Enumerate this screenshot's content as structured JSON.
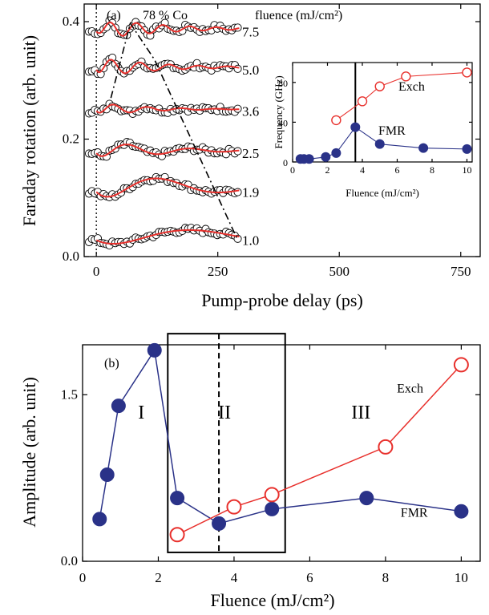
{
  "chart_data": [
    {
      "id": "a",
      "type": "scatter",
      "panel_label": "(a)",
      "sample_label": "78 % Co",
      "legend_title": "fluence (mJ/cm²)",
      "xlabel": "Pump-probe delay (ps)",
      "ylabel": "Faraday rotation (arb. unit)",
      "xlim": [
        -25,
        790
      ],
      "ylim": [
        0.0,
        0.43
      ],
      "xticks": [
        0,
        250,
        500,
        750
      ],
      "yticks": [
        0.0,
        0.2,
        0.4
      ],
      "xtick_labels": [
        "0",
        "250",
        "500",
        "750"
      ],
      "ytick_labels": [
        "0.0",
        "0.2",
        "0.4"
      ],
      "zero_delay_line": 0,
      "series": [
        {
          "name": "7.5",
          "fluence": 7.5,
          "offset": 0.383,
          "amplitude": 0.02,
          "period": 55,
          "decay": 120,
          "rise": 20,
          "step": 0.0
        },
        {
          "name": "5.0",
          "fluence": 5.0,
          "offset": 0.318,
          "amplitude": 0.018,
          "period": 60,
          "decay": 110,
          "rise": 10,
          "step": 0.0
        },
        {
          "name": "3.6",
          "fluence": 3.6,
          "offset": 0.248,
          "amplitude": 0.012,
          "period": 70,
          "decay": 90,
          "rise": 10,
          "step": 0.0
        },
        {
          "name": "2.5",
          "fluence": 2.5,
          "offset": 0.176,
          "amplitude": 0.018,
          "period": 130,
          "decay": 120,
          "rise": 15,
          "step": 0.0
        },
        {
          "name": "1.9",
          "fluence": 1.9,
          "offset": 0.11,
          "amplitude": 0.03,
          "period": 260,
          "decay": 200,
          "rise": 30,
          "step": 0.0
        },
        {
          "name": "1.0",
          "fluence": 1.0,
          "offset": 0.028,
          "amplitude": 0.02,
          "period": 400,
          "decay": 400,
          "rise": 40,
          "step": 0.0
        }
      ],
      "peak_guide": [
        [
          30,
          0.27
        ],
        [
          70,
          0.397
        ],
        [
          120,
          0.335
        ],
        [
          290,
          0.03
        ]
      ],
      "inset": {
        "type": "scatter",
        "xlabel": "Fluence (mJ/cm²)",
        "ylabel": "Frequency (GHz)",
        "xlim": [
          0,
          10.3
        ],
        "ylim": [
          0,
          100
        ],
        "xticks": [
          0,
          2,
          4,
          6,
          8,
          10
        ],
        "yticks": [
          0,
          40,
          80
        ],
        "xtick_labels": [
          "0",
          "2",
          "4",
          "6",
          "8",
          "10"
        ],
        "ytick_labels": [
          "0",
          "40",
          "80"
        ],
        "vline": 3.6,
        "series": [
          {
            "name": "Exch",
            "marker": "open-circle",
            "color": "#e8302c",
            "x": [
              2.5,
              4.0,
              5.0,
              6.5,
              10.0
            ],
            "y": [
              42,
              61,
              76,
              86,
              90
            ]
          },
          {
            "name": "FMR",
            "marker": "filled-circle",
            "color": "#2a3288",
            "x": [
              0.45,
              0.65,
              0.95,
              1.9,
              2.5,
              3.6,
              5.0,
              7.5,
              10.0
            ],
            "y": [
              3,
              3,
              3,
              5,
              9,
              35,
              18,
              14,
              13
            ]
          }
        ]
      }
    },
    {
      "id": "b",
      "type": "scatter",
      "panel_label": "(b)",
      "xlabel": "Fluence (mJ/cm²)",
      "ylabel": "Amplitude  (arb. unit)",
      "xlim": [
        0,
        10.5
      ],
      "ylim": [
        0,
        1.95
      ],
      "xticks": [
        0,
        2,
        4,
        6,
        8,
        10
      ],
      "yticks": [
        0.0,
        1.5
      ],
      "xtick_labels": [
        "0",
        "2",
        "4",
        "6",
        "8",
        "10"
      ],
      "ytick_labels": [
        "0.0",
        "1.5"
      ],
      "regions": [
        {
          "label": "I",
          "x": 1.55,
          "y": 1.35
        },
        {
          "label": "II",
          "x": 3.75,
          "y": 1.35
        },
        {
          "label": "III",
          "x": 7.35,
          "y": 1.35
        }
      ],
      "region_box": {
        "x0": 2.25,
        "x1": 5.35,
        "y0": 0.08,
        "y1": 2.05
      },
      "vline": 3.6,
      "series": [
        {
          "name": "FMR",
          "marker": "filled-circle",
          "color": "#2a3288",
          "x": [
            0.45,
            0.65,
            0.95,
            1.9,
            2.5,
            3.6,
            5.0,
            7.5,
            10.0
          ],
          "y": [
            0.38,
            0.78,
            1.4,
            1.9,
            0.57,
            0.34,
            0.47,
            0.57,
            0.45
          ]
        },
        {
          "name": "Exch",
          "marker": "open-circle",
          "color": "#e8302c",
          "x": [
            2.5,
            4.0,
            5.0,
            8.0,
            10.0
          ],
          "y": [
            0.24,
            0.49,
            0.6,
            1.03,
            1.77
          ]
        }
      ],
      "series_labels": [
        {
          "text": "Exch",
          "x": 8.3,
          "y": 1.52
        },
        {
          "text": "FMR",
          "x": 8.4,
          "y": 0.4
        }
      ]
    }
  ]
}
